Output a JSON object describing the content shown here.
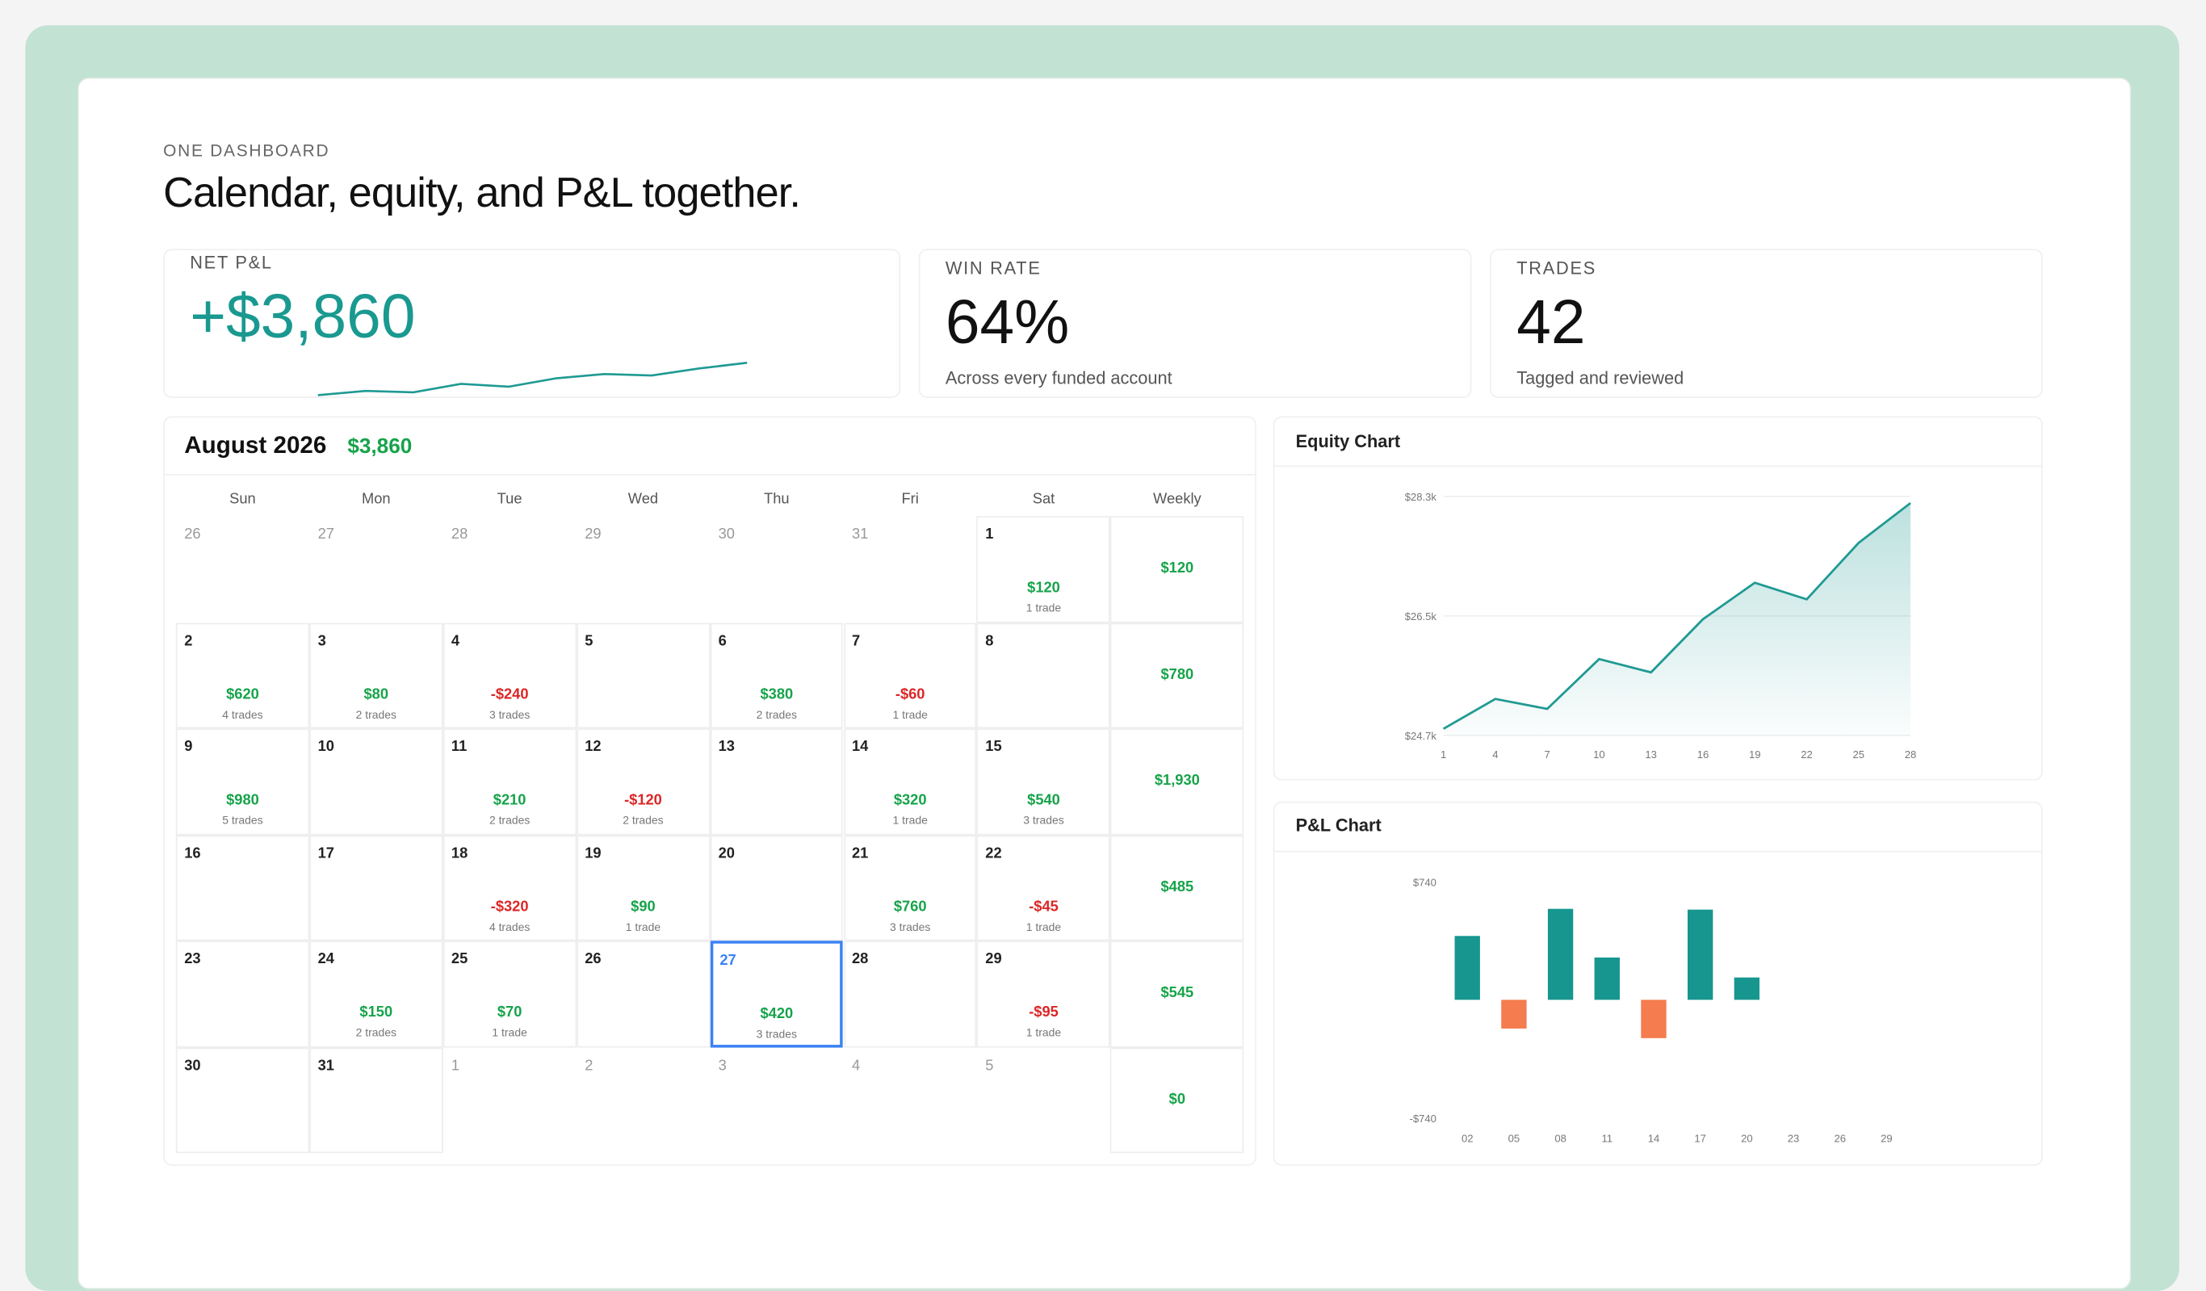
{
  "header": {
    "eyebrow": "ONE DASHBOARD",
    "title": "Calendar, equity, and P&L together."
  },
  "stats": [
    {
      "label": "NET P&L",
      "value": "+$3,860",
      "sparkline": [
        0,
        3,
        2,
        8,
        6,
        12,
        15,
        14,
        19,
        23
      ]
    },
    {
      "label": "WIN RATE",
      "value": "64%",
      "note": "Across every funded account"
    },
    {
      "label": "TRADES",
      "value": "42",
      "note": "Tagged and reviewed"
    }
  ],
  "calendar": {
    "month": "August 2026",
    "total": "$3,860",
    "weekdays": [
      "Sun",
      "Mon",
      "Tue",
      "Wed",
      "Thu",
      "Fri",
      "Sat",
      "Weekly"
    ],
    "weeks": [
      {
        "days": [
          {
            "day": "26",
            "muted": true
          },
          {
            "day": "27",
            "muted": true
          },
          {
            "day": "28",
            "muted": true
          },
          {
            "day": "29",
            "muted": true
          },
          {
            "day": "30",
            "muted": true
          },
          {
            "day": "31",
            "muted": true
          },
          {
            "day": "1",
            "pnl": "$120",
            "trades": "1 trade"
          }
        ],
        "weekly": "$120"
      },
      {
        "days": [
          {
            "day": "2",
            "pnl": "$620",
            "trades": "4 trades"
          },
          {
            "day": "3",
            "pnl": "$80",
            "trades": "2 trades"
          },
          {
            "day": "4",
            "pnl": "-$240",
            "trades": "3 trades"
          },
          {
            "day": "5"
          },
          {
            "day": "6",
            "pnl": "$380",
            "trades": "2 trades"
          },
          {
            "day": "7",
            "pnl": "-$60",
            "trades": "1 trade"
          },
          {
            "day": "8"
          }
        ],
        "weekly": "$780"
      },
      {
        "days": [
          {
            "day": "9",
            "pnl": "$980",
            "trades": "5 trades"
          },
          {
            "day": "10"
          },
          {
            "day": "11",
            "pnl": "$210",
            "trades": "2 trades"
          },
          {
            "day": "12",
            "pnl": "-$120",
            "trades": "2 trades"
          },
          {
            "day": "13"
          },
          {
            "day": "14",
            "pnl": "$320",
            "trades": "1 trade"
          },
          {
            "day": "15",
            "pnl": "$540",
            "trades": "3 trades"
          }
        ],
        "weekly": "$1,930"
      },
      {
        "days": [
          {
            "day": "16"
          },
          {
            "day": "17"
          },
          {
            "day": "18",
            "pnl": "-$320",
            "trades": "4 trades"
          },
          {
            "day": "19",
            "pnl": "$90",
            "trades": "1 trade"
          },
          {
            "day": "20"
          },
          {
            "day": "21",
            "pnl": "$760",
            "trades": "3 trades"
          },
          {
            "day": "22",
            "pnl": "-$45",
            "trades": "1 trade"
          }
        ],
        "weekly": "$485"
      },
      {
        "days": [
          {
            "day": "23"
          },
          {
            "day": "24",
            "pnl": "$150",
            "trades": "2 trades"
          },
          {
            "day": "25",
            "pnl": "$70",
            "trades": "1 trade"
          },
          {
            "day": "26"
          },
          {
            "day": "27",
            "pnl": "$420",
            "trades": "3 trades",
            "selected": true
          },
          {
            "day": "28"
          },
          {
            "day": "29",
            "pnl": "-$95",
            "trades": "1 trade"
          }
        ],
        "weekly": "$545"
      },
      {
        "days": [
          {
            "day": "30"
          },
          {
            "day": "31"
          },
          {
            "day": "1",
            "muted": true
          },
          {
            "day": "2",
            "muted": true
          },
          {
            "day": "3",
            "muted": true
          },
          {
            "day": "4",
            "muted": true
          },
          {
            "day": "5",
            "muted": true
          }
        ],
        "weekly": "$0"
      }
    ]
  },
  "chart_data": [
    {
      "type": "line",
      "title": "Equity Chart",
      "color": "#1f9a93",
      "x": [
        1,
        4,
        7,
        10,
        13,
        16,
        19,
        22,
        25,
        28
      ],
      "values": [
        24800,
        25250,
        25100,
        25850,
        25650,
        26450,
        27000,
        26750,
        27600,
        28200
      ],
      "xlim": [
        1,
        28
      ],
      "xticks": [
        1,
        4,
        7,
        10,
        13,
        16,
        19,
        22,
        25,
        28
      ],
      "ylim": [
        24700,
        28300
      ],
      "yticks": [
        {
          "value": 24700,
          "label": "$24.7k"
        },
        {
          "value": 26500,
          "label": "$26.5k"
        },
        {
          "value": 28300,
          "label": "$28.3k"
        }
      ],
      "grid": true
    },
    {
      "type": "bar",
      "title": "P&L Chart",
      "categories": [
        "02",
        "05",
        "08",
        "11",
        "14",
        "17",
        "20",
        "23",
        "26",
        "29"
      ],
      "values": [
        400,
        -180,
        570,
        265,
        -240,
        565,
        140,
        null,
        null,
        null
      ],
      "colors": {
        "positive": "#16968f",
        "negative": "#f47c4f"
      },
      "ylim": [
        -740,
        740
      ],
      "yticks": [
        {
          "value": -740,
          "label": "-$740"
        },
        {
          "value": 740,
          "label": "$740"
        }
      ]
    }
  ]
}
